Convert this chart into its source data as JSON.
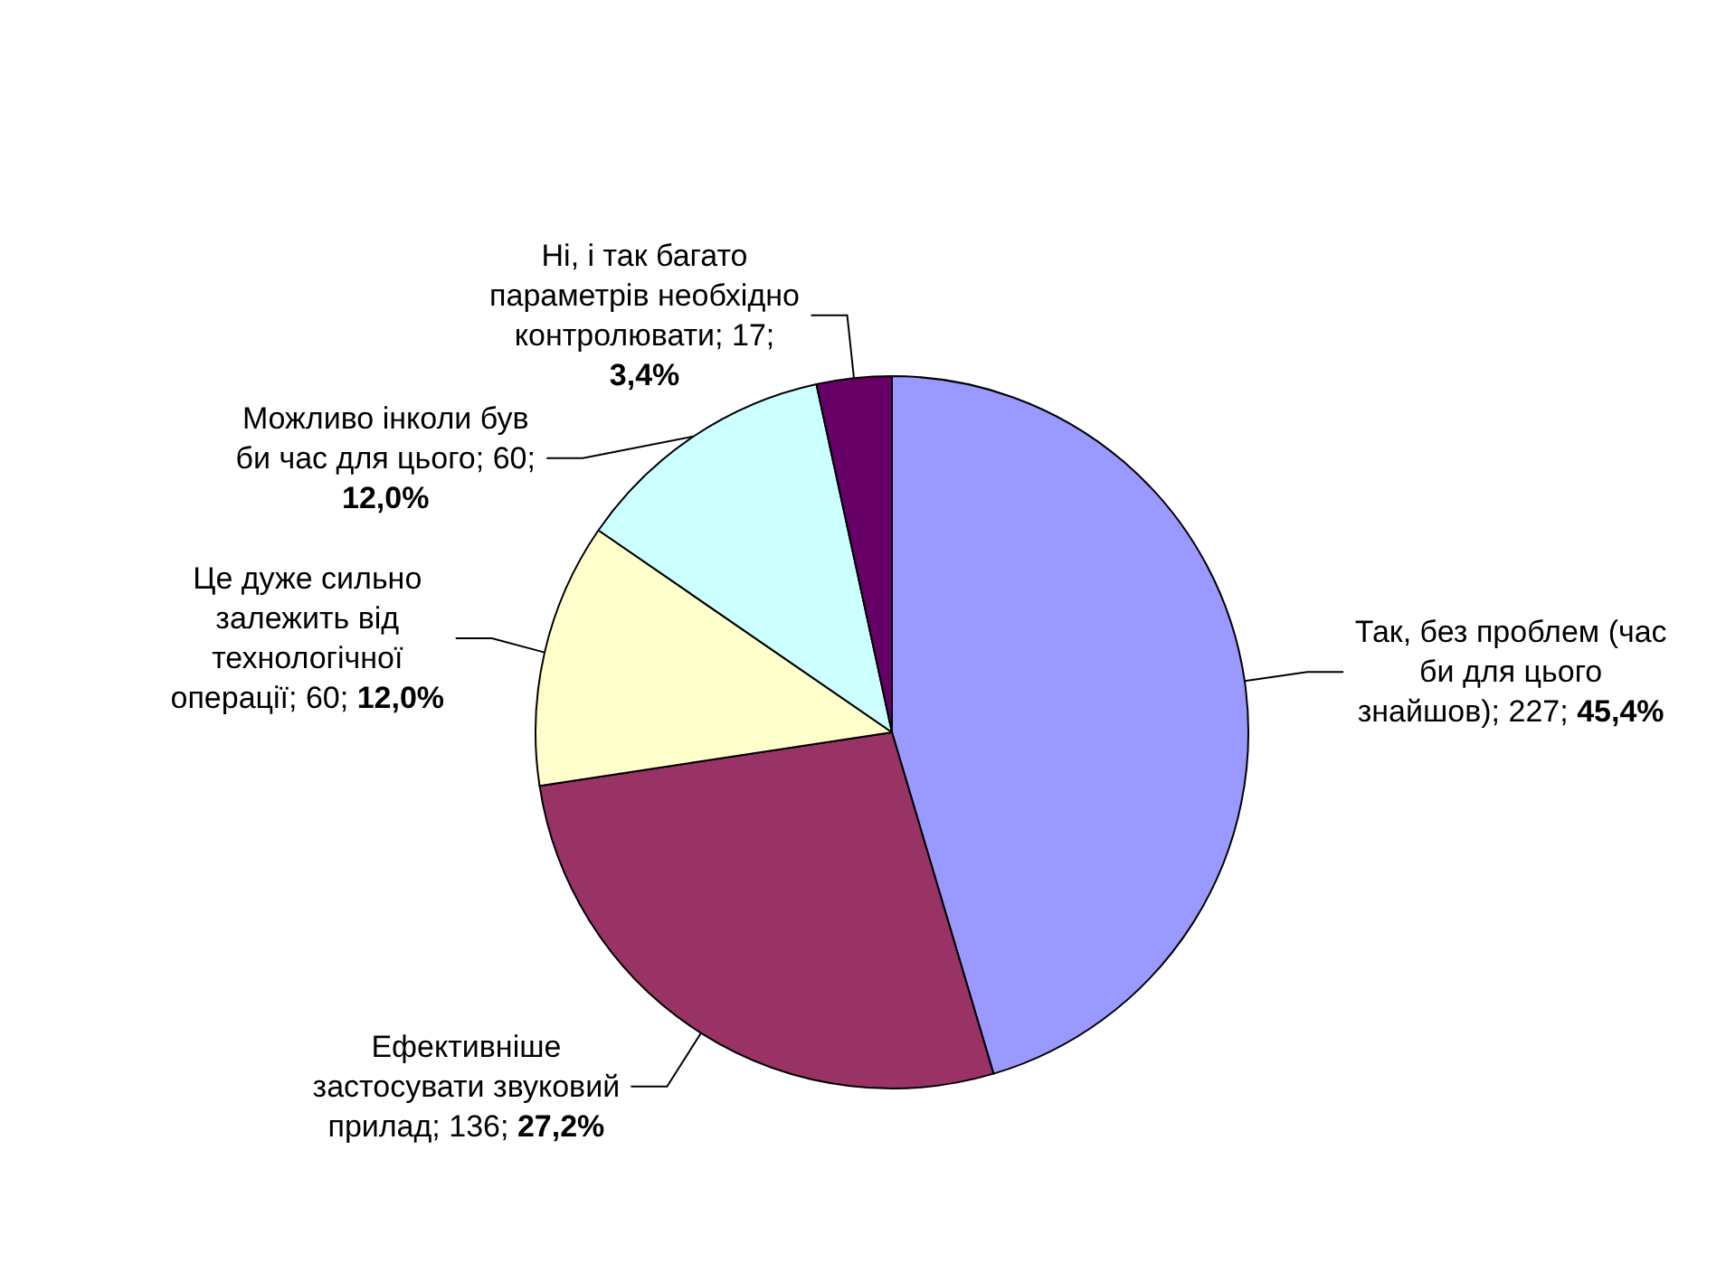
{
  "chart_data": {
    "type": "pie",
    "categories": [
      "Так, без проблем (час би для цього знайшов)",
      "Ефективніше застосувати звуковий прилад",
      "Це дуже сильно залежить від технологічної операції",
      "Можливо інколи був би час для цього",
      "Ні, і так багато параметрів необхідно контролювати"
    ],
    "values": [
      227,
      136,
      60,
      60,
      17
    ],
    "value_labels": [
      "227; 45,4%",
      "136; 27,2%",
      "60; 12,0%",
      "60; 12,0%",
      "17; 3,4%"
    ],
    "colors": [
      "#9999ff",
      "#993366",
      "#ffffcc",
      "#ccffff",
      "#660066"
    ],
    "legend": false
  }
}
